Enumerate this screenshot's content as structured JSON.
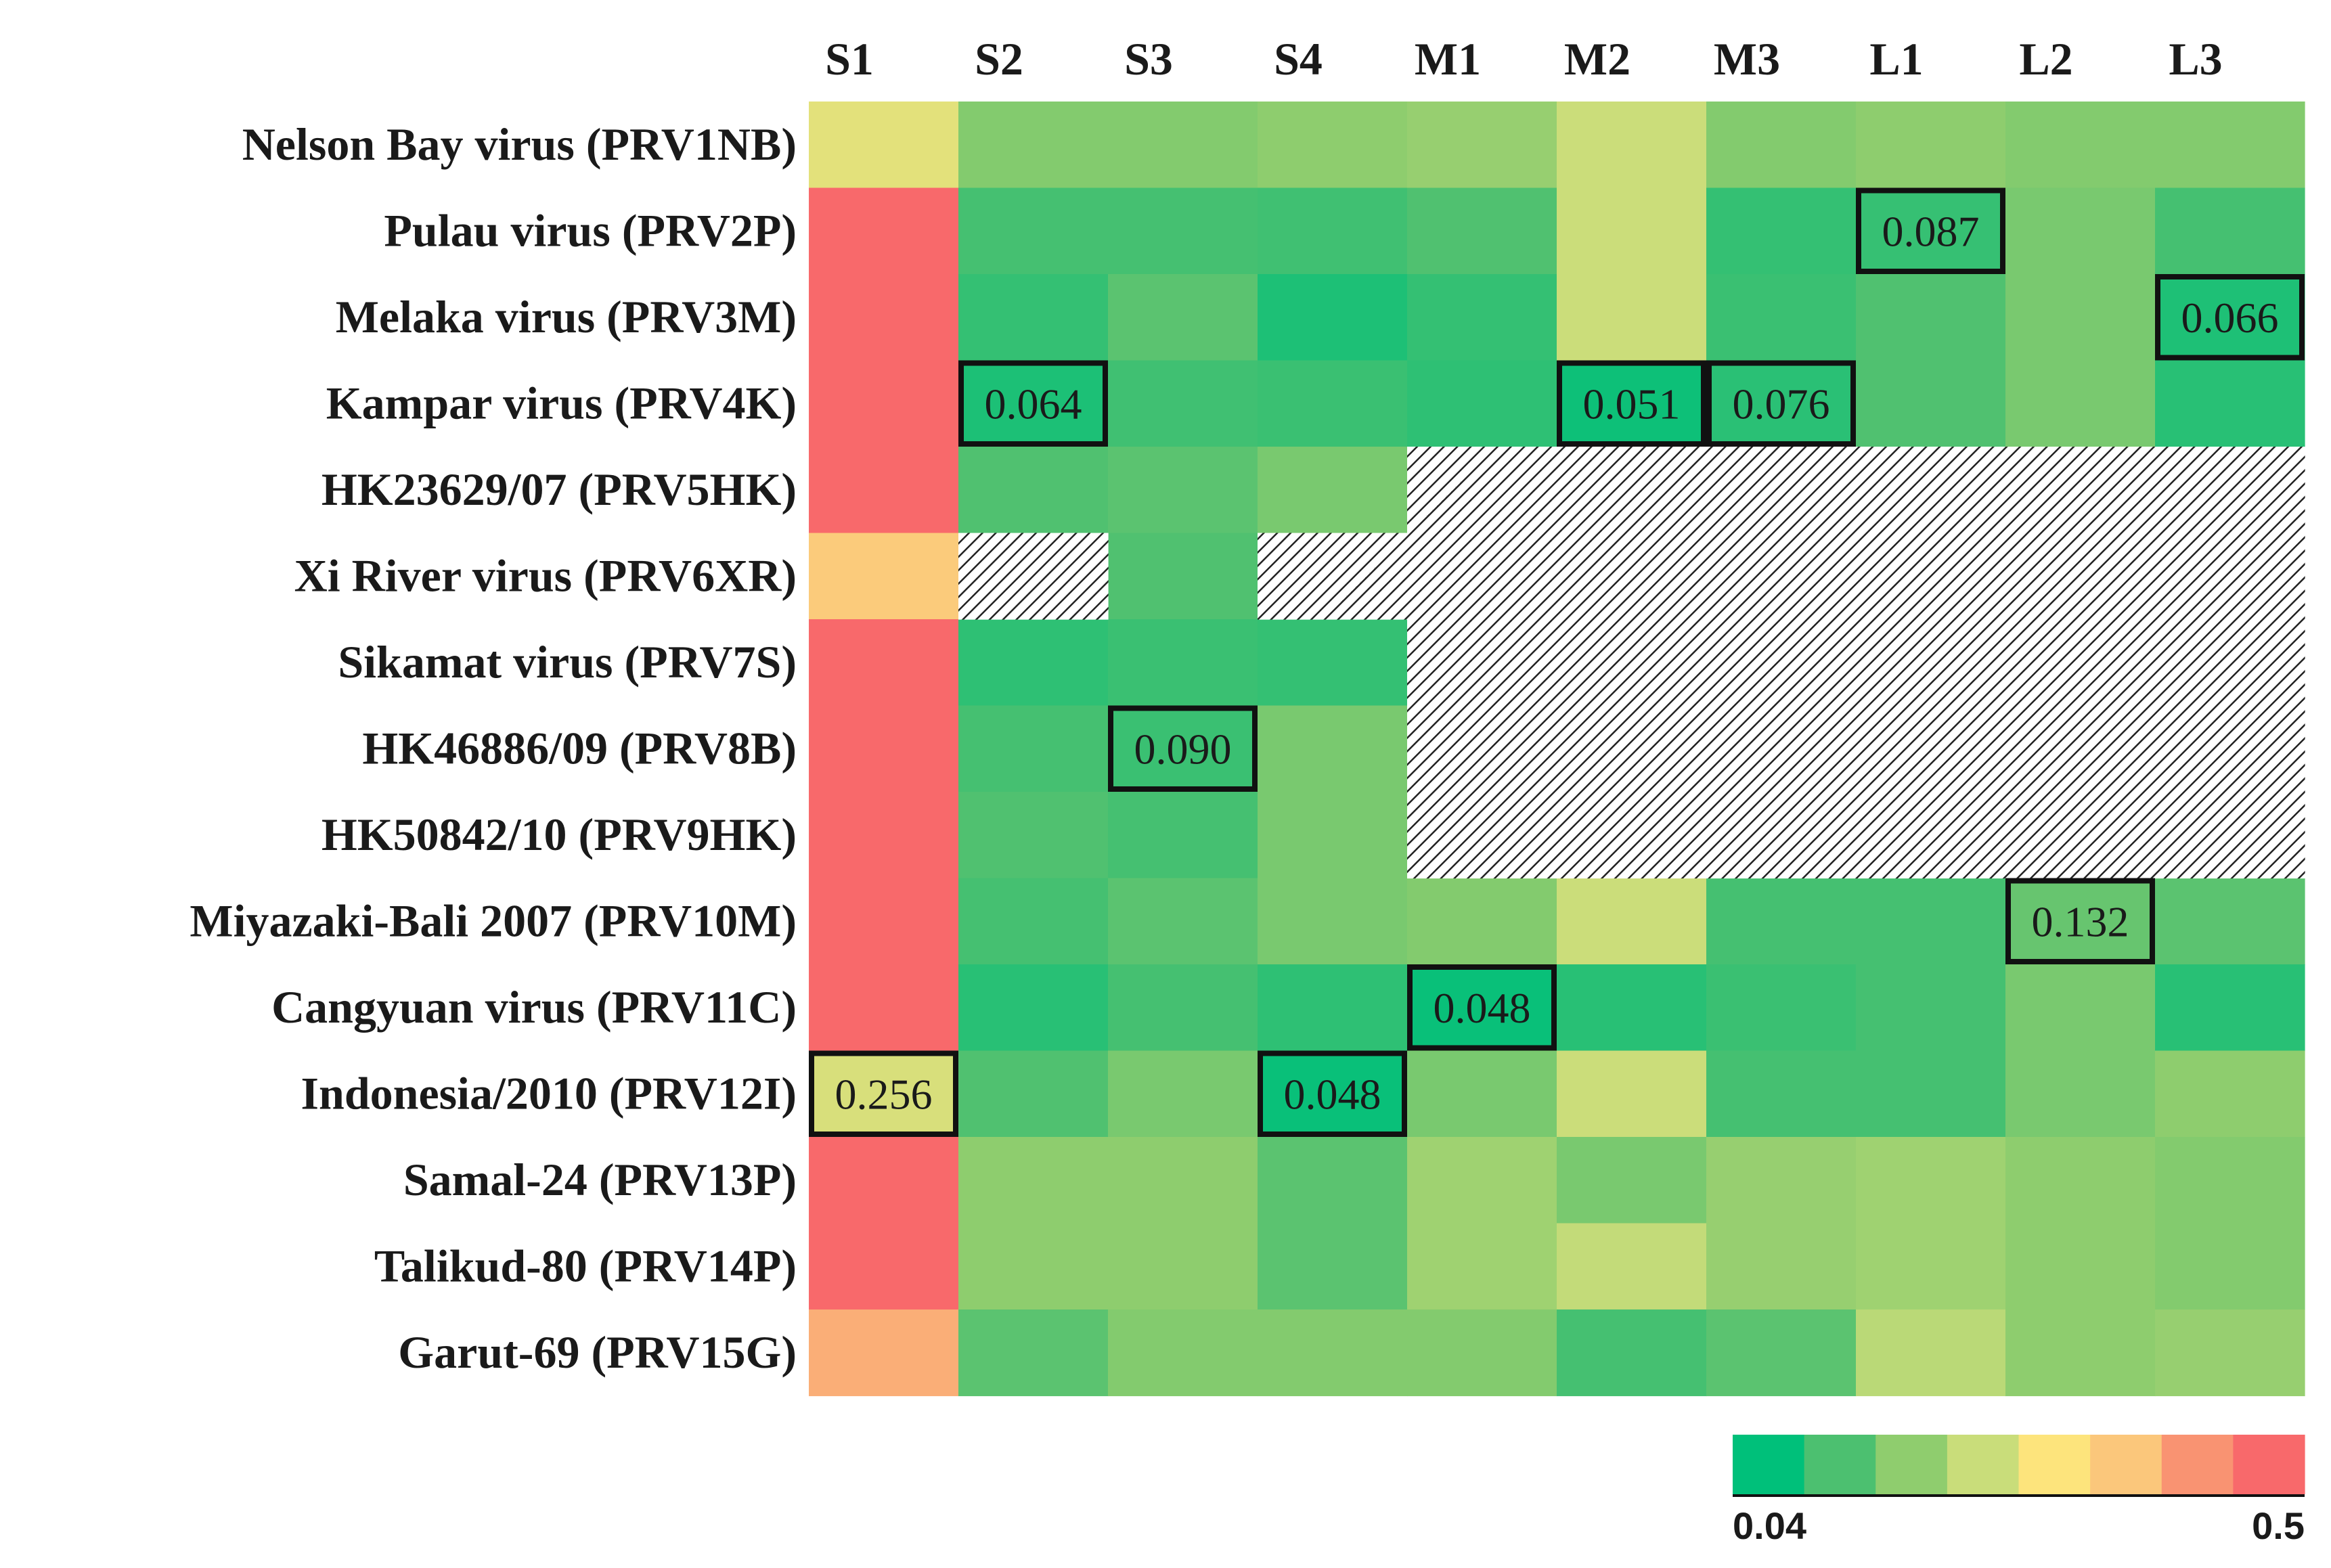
{
  "chart_data": {
    "type": "heatmap",
    "title": "",
    "columns": [
      "S1",
      "S2",
      "S3",
      "S4",
      "M1",
      "M2",
      "M3",
      "L1",
      "L2",
      "L3"
    ],
    "rows": [
      "Nelson Bay virus (PRV1NB)",
      "Pulau virus (PRV2P)",
      "Melaka virus (PRV3M)",
      "Kampar virus (PRV4K)",
      "HK23629/07 (PRV5HK)",
      "Xi River virus (PRV6XR)",
      "Sikamat virus (PRV7S)",
      "HK46886/09 (PRV8B)",
      "HK50842/10 (PRV9HK)",
      "Miyazaki-Bali 2007 (PRV10M)",
      "Cangyuan virus (PRV11C)",
      "Indonesia/2010 (PRV12I)",
      "Samal-24 (PRV13P)",
      "Talikud-80 (PRV14P)",
      "Garut-69 (PRV15G)"
    ],
    "values": [
      [
        0.27,
        0.16,
        0.16,
        0.17,
        0.18,
        0.24,
        0.16,
        0.17,
        0.16,
        0.16
      ],
      [
        0.5,
        0.1,
        0.1,
        0.095,
        0.11,
        0.24,
        0.085,
        0.087,
        0.15,
        0.1
      ],
      [
        0.5,
        0.085,
        0.12,
        0.065,
        0.085,
        0.24,
        0.09,
        0.11,
        0.15,
        0.066
      ],
      [
        0.5,
        0.064,
        0.095,
        0.09,
        0.08,
        0.051,
        0.076,
        0.11,
        0.15,
        0.075
      ],
      [
        0.5,
        0.11,
        0.12,
        0.15,
        null,
        null,
        null,
        null,
        null,
        null
      ],
      [
        0.36,
        null,
        0.11,
        null,
        null,
        null,
        null,
        null,
        null,
        null
      ],
      [
        0.5,
        0.08,
        0.09,
        0.085,
        null,
        null,
        null,
        null,
        null,
        null
      ],
      [
        0.5,
        0.1,
        0.09,
        0.15,
        null,
        null,
        null,
        null,
        null,
        null
      ],
      [
        0.5,
        0.11,
        0.1,
        0.15,
        null,
        null,
        null,
        null,
        null,
        null
      ],
      [
        0.5,
        0.1,
        0.12,
        0.15,
        0.16,
        0.24,
        0.1,
        0.1,
        0.132,
        0.12
      ],
      [
        0.5,
        0.075,
        0.1,
        0.08,
        0.048,
        0.075,
        0.09,
        0.1,
        0.15,
        0.075
      ],
      [
        0.256,
        0.11,
        0.15,
        0.048,
        0.15,
        0.24,
        0.1,
        0.1,
        0.15,
        0.17
      ],
      [
        0.5,
        0.17,
        0.17,
        0.12,
        0.19,
        0.15,
        0.18,
        0.19,
        0.17,
        0.16
      ],
      [
        0.5,
        0.17,
        0.17,
        0.12,
        0.19,
        0.23,
        0.18,
        0.19,
        0.17,
        0.16
      ],
      [
        0.4,
        0.12,
        0.16,
        0.16,
        0.16,
        0.1,
        0.12,
        0.22,
        0.17,
        0.18
      ]
    ],
    "highlighted": [
      {
        "row": 1,
        "col": 7,
        "label": "0.087"
      },
      {
        "row": 2,
        "col": 9,
        "label": "0.066"
      },
      {
        "row": 3,
        "col": 1,
        "label": "0.064"
      },
      {
        "row": 3,
        "col": 5,
        "label": "0.051"
      },
      {
        "row": 3,
        "col": 6,
        "label": "0.076"
      },
      {
        "row": 7,
        "col": 2,
        "label": "0.090"
      },
      {
        "row": 9,
        "col": 8,
        "label": "0.132"
      },
      {
        "row": 10,
        "col": 4,
        "label": "0.048"
      },
      {
        "row": 11,
        "col": 0,
        "label": "0.256"
      },
      {
        "row": 11,
        "col": 3,
        "label": "0.048"
      }
    ],
    "missing_pattern": "hatched",
    "color_scale": {
      "min": 0.04,
      "max": 0.5,
      "min_label": "0.04",
      "max_label": "0.5",
      "colors": [
        "#00c07a",
        "#4cc070",
        "#8fcd6e",
        "#c9dd7a",
        "#fde47c",
        "#fbc77b",
        "#f99372",
        "#f8696b"
      ]
    }
  }
}
